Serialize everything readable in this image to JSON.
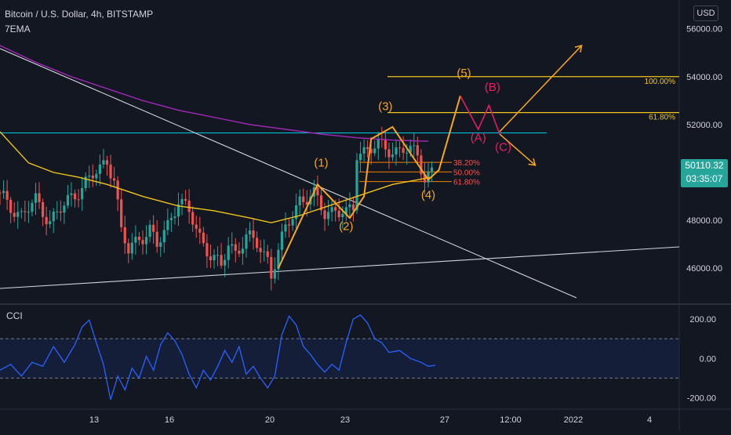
{
  "header": {
    "symbol_title": "Bitcoin / U.S. Dollar, 4h, BITSTAMP",
    "indicator": "7EMA",
    "currency": "USD"
  },
  "colors": {
    "background": "#131722",
    "up": "#26a69a",
    "down": "#ef5350",
    "ema_yellow": "#f0c419",
    "ema_purple": "#9c27b0",
    "fib": "#f0c419",
    "cyan": "#00bcd4",
    "wave_orange": "#f5a623",
    "wave_pink": "#e91e63",
    "cci_line": "#2962ff",
    "trendline": "#d1d4dc"
  },
  "price_tag": {
    "price": "50110.32",
    "countdown": "03:35:07"
  },
  "chart_data": [
    {
      "type": "candlestick",
      "title": "Bitcoin / U.S. Dollar, 4h, BITSTAMP",
      "y_axis": {
        "ticks": [
          46000,
          48000,
          50000,
          52000,
          54000,
          56000
        ],
        "tick_labels": [
          "46000.00",
          "48000.00",
          "50000.00",
          "52000.00",
          "54000.00",
          "56000.00"
        ],
        "range": [
          44600,
          57200
        ]
      },
      "x_axis": {
        "tick_labels": [
          "13",
          "16",
          "20",
          "23",
          "27",
          "12:00",
          "2022",
          "4"
        ]
      },
      "close_path": [
        [
          0,
          49000
        ],
        [
          6,
          48200
        ],
        [
          10,
          48800
        ],
        [
          14,
          48000
        ],
        [
          18,
          48600
        ],
        [
          24,
          49600
        ],
        [
          28,
          50100
        ],
        [
          30,
          50500
        ],
        [
          32,
          49800
        ],
        [
          34,
          47500
        ],
        [
          36,
          46700
        ],
        [
          39,
          47300
        ],
        [
          42,
          47600
        ],
        [
          44,
          46900
        ],
        [
          47,
          47800
        ],
        [
          50,
          48900
        ],
        [
          53,
          48300
        ],
        [
          56,
          47300
        ],
        [
          59,
          46600
        ],
        [
          62,
          46000
        ],
        [
          64,
          47000
        ],
        [
          66,
          46700
        ],
        [
          69,
          47300
        ],
        [
          72,
          47000
        ],
        [
          75,
          46400
        ],
        [
          76,
          45800
        ],
        [
          80,
          47600
        ],
        [
          84,
          48900
        ],
        [
          88,
          49000
        ],
        [
          91,
          48300
        ],
        [
          94,
          48500
        ],
        [
          97,
          48200
        ],
        [
          99,
          48500
        ],
        [
          100,
          50800
        ],
        [
          103,
          51000
        ],
        [
          106,
          51100
        ],
        [
          110,
          50900
        ],
        [
          113,
          51000
        ],
        [
          117,
          50700
        ],
        [
          119,
          49800
        ],
        [
          121,
          50100
        ]
      ],
      "ema_yellow": [
        [
          0,
          51700
        ],
        [
          8,
          50400
        ],
        [
          15,
          50000
        ],
        [
          22,
          49800
        ],
        [
          30,
          49500
        ],
        [
          40,
          49000
        ],
        [
          50,
          48600
        ],
        [
          60,
          48400
        ],
        [
          70,
          48100
        ],
        [
          76,
          47900
        ],
        [
          84,
          48200
        ],
        [
          92,
          48600
        ],
        [
          100,
          49000
        ],
        [
          110,
          49500
        ],
        [
          121,
          49800
        ]
      ],
      "ema_purple": [
        [
          0,
          55300
        ],
        [
          10,
          54600
        ],
        [
          20,
          54000
        ],
        [
          30,
          53500
        ],
        [
          40,
          53000
        ],
        [
          50,
          52600
        ],
        [
          60,
          52300
        ],
        [
          70,
          52000
        ],
        [
          80,
          51800
        ],
        [
          90,
          51600
        ],
        [
          100,
          51450
        ],
        [
          110,
          51350
        ],
        [
          120,
          51300
        ]
      ],
      "fib_levels": [
        {
          "label": "38.20%",
          "value": 50420
        },
        {
          "label": "50.00%",
          "value": 50020
        },
        {
          "label": "61.80%",
          "value": 49620
        }
      ],
      "projection_fib": [
        {
          "label": "100.00%",
          "value": 54000
        },
        {
          "label": "61.80%",
          "value": 52500
        }
      ],
      "resistance_level": 51650,
      "wave_labels": [
        {
          "label": "(1)",
          "x": 90,
          "value": 50250
        },
        {
          "label": "(2)",
          "x": 97,
          "value": 47600
        },
        {
          "label": "(3)",
          "x": 108,
          "value": 52600
        },
        {
          "label": "(4)",
          "x": 120,
          "value": 48900
        },
        {
          "label": "(5)",
          "x": 130,
          "value": 54000
        },
        {
          "label": "(A)",
          "x": 134,
          "value": 51300
        },
        {
          "label": "(B)",
          "x": 138,
          "value": 53400
        },
        {
          "label": "(C)",
          "x": 141,
          "value": 50900
        }
      ],
      "impulse_path": [
        [
          78,
          46000
        ],
        [
          89,
          49500
        ],
        [
          98,
          48100
        ],
        [
          102,
          49000
        ],
        [
          104,
          51400
        ],
        [
          110,
          51900
        ],
        [
          120,
          49700
        ],
        [
          123,
          50100
        ],
        [
          129,
          53200
        ]
      ],
      "correction_path": [
        [
          129,
          53200
        ],
        [
          134,
          51800
        ],
        [
          137,
          52800
        ],
        [
          140,
          51600
        ]
      ],
      "arrow_up": [
        [
          140,
          51700
        ],
        [
          163,
          55300
        ]
      ],
      "arrow_down": [
        [
          140,
          51600
        ],
        [
          150,
          50300
        ]
      ]
    },
    {
      "type": "line",
      "title": "CCI",
      "y_axis": {
        "ticks": [
          200,
          0,
          -200
        ],
        "tick_labels": [
          "200.00",
          "0.00",
          "-200.00"
        ],
        "range": [
          -250,
          260
        ]
      },
      "bands": [
        100,
        -100
      ],
      "series": [
        {
          "values": [
            [
              0,
              -60
            ],
            [
              3,
              -30
            ],
            [
              6,
              -90
            ],
            [
              9,
              -20
            ],
            [
              12,
              -40
            ],
            [
              15,
              60
            ],
            [
              18,
              -20
            ],
            [
              21,
              70
            ],
            [
              23,
              160
            ],
            [
              25,
              195
            ],
            [
              27,
              80
            ],
            [
              29,
              -30
            ],
            [
              31,
              -210
            ],
            [
              33,
              -90
            ],
            [
              35,
              -160
            ],
            [
              37,
              -50
            ],
            [
              39,
              -100
            ],
            [
              41,
              10
            ],
            [
              43,
              -60
            ],
            [
              45,
              70
            ],
            [
              47,
              130
            ],
            [
              49,
              90
            ],
            [
              51,
              20
            ],
            [
              53,
              -80
            ],
            [
              55,
              -150
            ],
            [
              57,
              -60
            ],
            [
              59,
              -110
            ],
            [
              61,
              -40
            ],
            [
              63,
              40
            ],
            [
              65,
              -20
            ],
            [
              67,
              60
            ],
            [
              69,
              -80
            ],
            [
              71,
              -40
            ],
            [
              73,
              -100
            ],
            [
              75,
              -150
            ],
            [
              77,
              -90
            ],
            [
              79,
              120
            ],
            [
              81,
              215
            ],
            [
              83,
              170
            ],
            [
              85,
              60
            ],
            [
              87,
              20
            ],
            [
              89,
              -30
            ],
            [
              91,
              -70
            ],
            [
              93,
              -30
            ],
            [
              95,
              -60
            ],
            [
              97,
              80
            ],
            [
              99,
              200
            ],
            [
              101,
              220
            ],
            [
              103,
              180
            ],
            [
              105,
              100
            ],
            [
              107,
              80
            ],
            [
              109,
              30
            ],
            [
              112,
              40
            ],
            [
              115,
              0
            ],
            [
              118,
              -20
            ],
            [
              120,
              -40
            ],
            [
              122,
              -35
            ]
          ]
        }
      ]
    }
  ]
}
